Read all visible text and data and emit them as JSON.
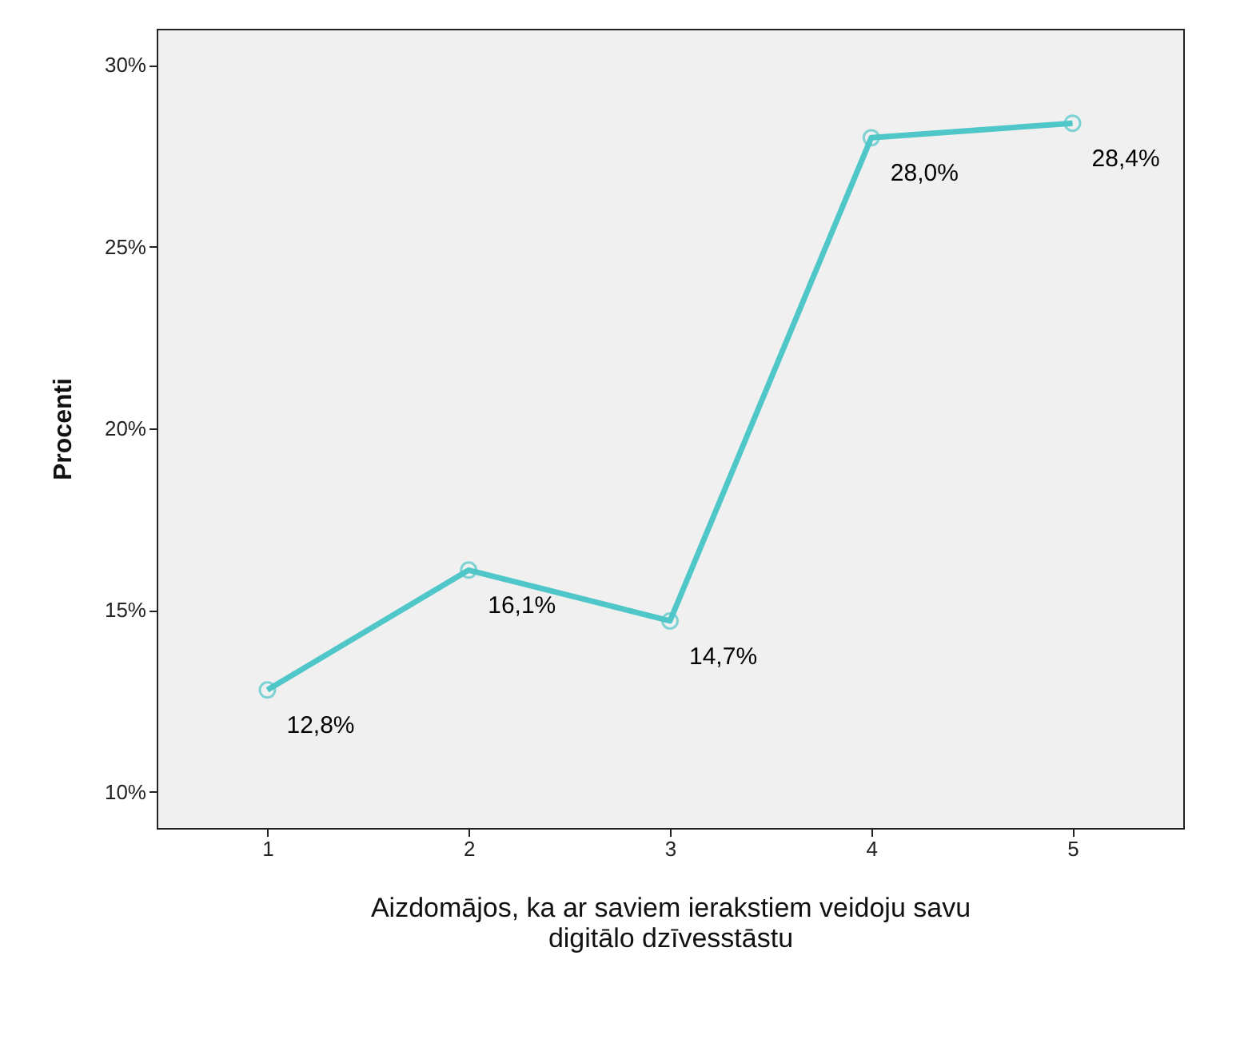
{
  "chart_data": {
    "type": "line",
    "xlabel": "Aizdomājos, ka ar saviem ierakstiem veidoju savu digitālo dzīvesstāstu",
    "ylabel": "Procenti",
    "categories": [
      "1",
      "2",
      "3",
      "4",
      "5"
    ],
    "series": [
      {
        "color": "#4fc6c8",
        "values": [
          12.8,
          16.1,
          14.7,
          28.0,
          28.4
        ],
        "value_labels": [
          "12,8%",
          "16,1%",
          "14,7%",
          "28,0%",
          "28,4%"
        ]
      }
    ],
    "ylim": [
      9,
      31
    ],
    "yticks": [
      {
        "value": 10,
        "label": "10%"
      },
      {
        "value": 15,
        "label": "15%"
      },
      {
        "value": 20,
        "label": "20%"
      },
      {
        "value": 25,
        "label": "25%"
      },
      {
        "value": 30,
        "label": "30%"
      }
    ],
    "grid": false,
    "marker": "circle",
    "line_style": "solid"
  }
}
